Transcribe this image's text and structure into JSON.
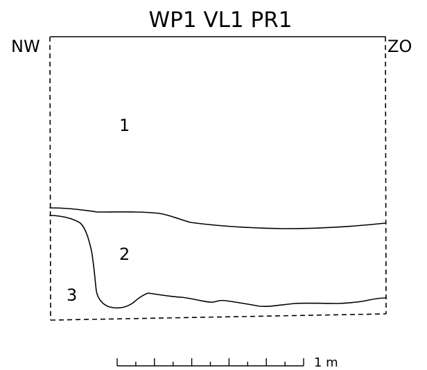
{
  "title": "WP1 VL1 PR1",
  "orientation": {
    "left": "NW",
    "right": "ZO"
  },
  "layers": [
    {
      "label": "1"
    },
    {
      "label": "2"
    },
    {
      "label": "3"
    }
  ],
  "scale_bar": {
    "label": "1 m",
    "length_m": 1,
    "divisions": 10,
    "major_tick_every": 2
  },
  "colors": {
    "ink": "#000000",
    "background": "#ffffff"
  }
}
